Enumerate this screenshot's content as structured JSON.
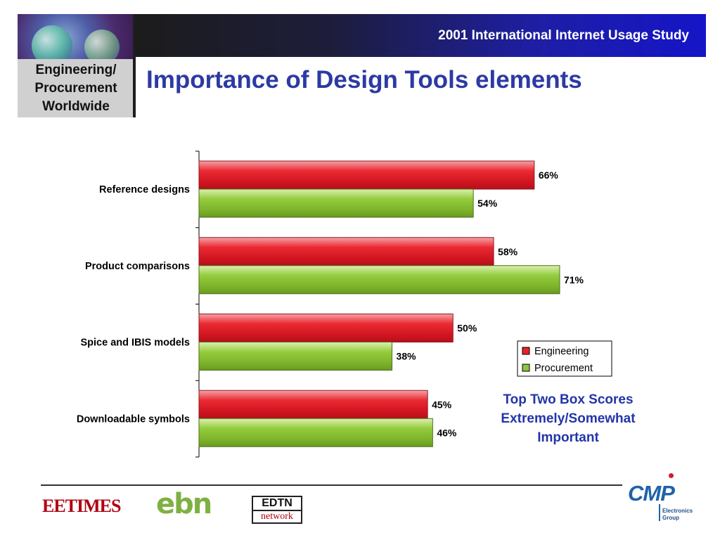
{
  "header": {
    "logo_label": "Engineering/\nProcurement\nWorldwide",
    "banner_title": "2001 International Internet Usage Study",
    "page_title": "Importance of Design Tools elements"
  },
  "chart_data": {
    "type": "bar",
    "orientation": "horizontal",
    "categories": [
      "Reference designs",
      "Product comparisons",
      "Spice and IBIS models",
      "Downloadable symbols"
    ],
    "series": [
      {
        "name": "Engineering",
        "values": [
          66,
          58,
          50,
          45
        ],
        "labels": [
          "66%",
          "58%",
          "50%",
          "45%"
        ],
        "color": "#e8212b"
      },
      {
        "name": "Procurement",
        "values": [
          54,
          71,
          38,
          46
        ],
        "labels": [
          "54%",
          "71%",
          "38%",
          "46%"
        ],
        "color": "#8cc63f"
      }
    ],
    "value_unit": "%",
    "xlim": [
      0,
      100
    ],
    "grid": false,
    "legend_position": "bottom-right"
  },
  "note": {
    "lines": [
      "Top Two Box Scores",
      "Extremely/Somewhat",
      "Important"
    ]
  },
  "footer": {
    "logos": {
      "eetimes": "EETIMES",
      "ebn": "ebn",
      "edtn_top": "EDTN",
      "edtn_bottom": "network",
      "cmp": "CMP",
      "cmp_sub": "Electronics\nGroup"
    }
  },
  "colors": {
    "title_blue": "#2c3aa3",
    "banner_blue": "#1515c8",
    "engineering_red": "#e8212b",
    "procurement_green": "#8cc63f"
  }
}
